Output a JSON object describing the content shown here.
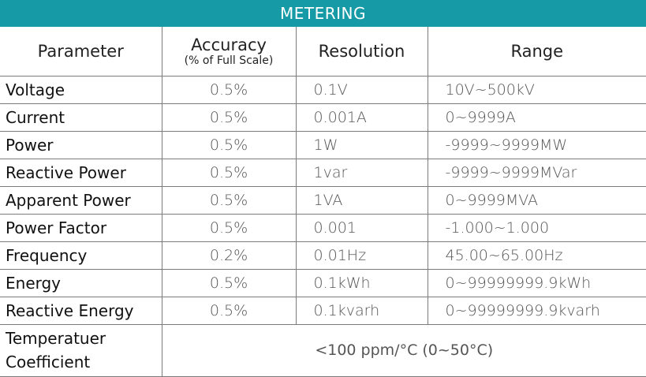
{
  "title": "METERING",
  "headers": {
    "parameter": "Parameter",
    "accuracy": "Accuracy",
    "accuracy_sub": "(% of Full Scale)",
    "resolution": "Resolution",
    "range": "Range"
  },
  "rows": [
    {
      "parameter": "Voltage",
      "accuracy": "0.5%",
      "resolution": "0.1V",
      "range": "10V~500kV"
    },
    {
      "parameter": "Current",
      "accuracy": "0.5%",
      "resolution": "0.001A",
      "range": "0~9999A"
    },
    {
      "parameter": "Power",
      "accuracy": "0.5%",
      "resolution": "1W",
      "range": "-9999~9999MW"
    },
    {
      "parameter": "Reactive Power",
      "accuracy": "0.5%",
      "resolution": "1var",
      "range": "-9999~9999MVar"
    },
    {
      "parameter": "Apparent Power",
      "accuracy": "0.5%",
      "resolution": "1VA",
      "range": "0~9999MVA"
    },
    {
      "parameter": "Power Factor",
      "accuracy": "0.5%",
      "resolution": "0.001",
      "range": "-1.000~1.000"
    },
    {
      "parameter": "Frequency",
      "accuracy": "0.2%",
      "resolution": "0.01Hz",
      "range": "45.00~65.00Hz"
    },
    {
      "parameter": "Energy",
      "accuracy": "0.5%",
      "resolution": "0.1kWh",
      "range": "0~99999999.9kWh"
    },
    {
      "parameter": "Reactive Energy",
      "accuracy": "0.5%",
      "resolution": "0.1kvarh",
      "range": "0~99999999.9kvarh"
    }
  ],
  "temperature": {
    "label_line1": "Temperatuer",
    "label_line2": "Coefficient",
    "value": "<100 ppm/°C (0~50°C)"
  }
}
